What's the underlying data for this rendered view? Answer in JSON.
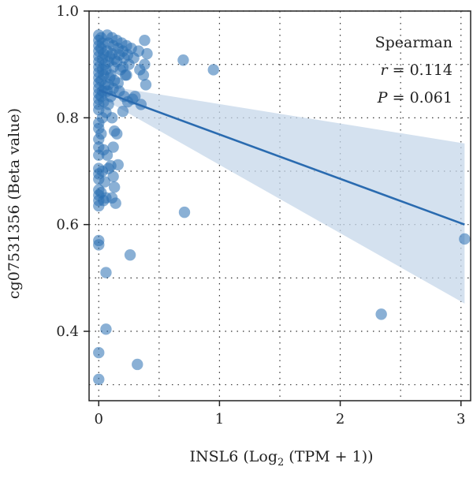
{
  "chart_data": {
    "type": "scatter",
    "xlabel_main": "INSL6 (Log",
    "xlabel_sub": "2",
    "xlabel_tail": " (TPM + 1))",
    "ylabel": "cg07531356 (Beta value)",
    "xlim": [
      -0.08,
      3.08
    ],
    "ylim": [
      0.27,
      1.0
    ],
    "xticks": [
      0,
      1,
      2,
      3
    ],
    "xtick_labels": [
      "0",
      "1",
      "2",
      "3"
    ],
    "yticks": [
      0.4,
      0.6,
      0.8,
      1.0
    ],
    "ytick_labels": [
      "0.4",
      "0.6",
      "0.8",
      "1.0"
    ],
    "grid": true,
    "annotation": {
      "method": "Spearman",
      "r_symbol": "r",
      "r_value": " = 0.114",
      "p_symbol": "P",
      "p_value": " = 0.061"
    },
    "colors": {
      "points": "#2a70b3",
      "line": "#2a6bb0",
      "band": "#c5d7ea"
    },
    "regression": {
      "x": [
        0,
        3.03
      ],
      "y": [
        0.852,
        0.6
      ],
      "ci_upper": [
        0.862,
        0.752
      ],
      "ci_lower": [
        0.84,
        0.452
      ]
    },
    "points": [
      {
        "x": 0.0,
        "y": 0.955
      },
      {
        "x": 0.0,
        "y": 0.945
      },
      {
        "x": 0.0,
        "y": 0.935
      },
      {
        "x": 0.0,
        "y": 0.925
      },
      {
        "x": 0.0,
        "y": 0.915
      },
      {
        "x": 0.0,
        "y": 0.905
      },
      {
        "x": 0.0,
        "y": 0.895
      },
      {
        "x": 0.0,
        "y": 0.885
      },
      {
        "x": 0.0,
        "y": 0.875
      },
      {
        "x": 0.0,
        "y": 0.865
      },
      {
        "x": 0.0,
        "y": 0.855
      },
      {
        "x": 0.0,
        "y": 0.845
      },
      {
        "x": 0.0,
        "y": 0.835
      },
      {
        "x": 0.0,
        "y": 0.825
      },
      {
        "x": 0.0,
        "y": 0.815
      },
      {
        "x": 0.0,
        "y": 0.79
      },
      {
        "x": 0.0,
        "y": 0.78
      },
      {
        "x": 0.0,
        "y": 0.76
      },
      {
        "x": 0.0,
        "y": 0.745
      },
      {
        "x": 0.0,
        "y": 0.73
      },
      {
        "x": 0.0,
        "y": 0.705
      },
      {
        "x": 0.0,
        "y": 0.695
      },
      {
        "x": 0.0,
        "y": 0.685
      },
      {
        "x": 0.0,
        "y": 0.665
      },
      {
        "x": 0.0,
        "y": 0.655
      },
      {
        "x": 0.0,
        "y": 0.645
      },
      {
        "x": 0.0,
        "y": 0.635
      },
      {
        "x": 0.0,
        "y": 0.57
      },
      {
        "x": 0.0,
        "y": 0.562
      },
      {
        "x": 0.0,
        "y": 0.36
      },
      {
        "x": 0.0,
        "y": 0.31
      },
      {
        "x": 0.02,
        "y": 0.95
      },
      {
        "x": 0.03,
        "y": 0.94
      },
      {
        "x": 0.02,
        "y": 0.93
      },
      {
        "x": 0.04,
        "y": 0.92
      },
      {
        "x": 0.03,
        "y": 0.91
      },
      {
        "x": 0.05,
        "y": 0.9
      },
      {
        "x": 0.03,
        "y": 0.89
      },
      {
        "x": 0.04,
        "y": 0.88
      },
      {
        "x": 0.02,
        "y": 0.87
      },
      {
        "x": 0.05,
        "y": 0.86
      },
      {
        "x": 0.03,
        "y": 0.85
      },
      {
        "x": 0.02,
        "y": 0.84
      },
      {
        "x": 0.04,
        "y": 0.83
      },
      {
        "x": 0.03,
        "y": 0.8
      },
      {
        "x": 0.02,
        "y": 0.77
      },
      {
        "x": 0.04,
        "y": 0.74
      },
      {
        "x": 0.03,
        "y": 0.7
      },
      {
        "x": 0.05,
        "y": 0.68
      },
      {
        "x": 0.02,
        "y": 0.66
      },
      {
        "x": 0.04,
        "y": 0.645
      },
      {
        "x": 0.07,
        "y": 0.955
      },
      {
        "x": 0.08,
        "y": 0.94
      },
      {
        "x": 0.07,
        "y": 0.925
      },
      {
        "x": 0.09,
        "y": 0.915
      },
      {
        "x": 0.08,
        "y": 0.905
      },
      {
        "x": 0.06,
        "y": 0.89
      },
      {
        "x": 0.09,
        "y": 0.875
      },
      {
        "x": 0.08,
        "y": 0.862
      },
      {
        "x": 0.07,
        "y": 0.85
      },
      {
        "x": 0.1,
        "y": 0.84
      },
      {
        "x": 0.08,
        "y": 0.825
      },
      {
        "x": 0.06,
        "y": 0.81
      },
      {
        "x": 0.07,
        "y": 0.73
      },
      {
        "x": 0.08,
        "y": 0.705
      },
      {
        "x": 0.06,
        "y": 0.65
      },
      {
        "x": 0.06,
        "y": 0.51
      },
      {
        "x": 0.06,
        "y": 0.404
      },
      {
        "x": 0.11,
        "y": 0.95
      },
      {
        "x": 0.12,
        "y": 0.935
      },
      {
        "x": 0.11,
        "y": 0.92
      },
      {
        "x": 0.13,
        "y": 0.91
      },
      {
        "x": 0.12,
        "y": 0.895
      },
      {
        "x": 0.1,
        "y": 0.88
      },
      {
        "x": 0.13,
        "y": 0.87
      },
      {
        "x": 0.12,
        "y": 0.855
      },
      {
        "x": 0.11,
        "y": 0.8
      },
      {
        "x": 0.13,
        "y": 0.775
      },
      {
        "x": 0.12,
        "y": 0.745
      },
      {
        "x": 0.1,
        "y": 0.71
      },
      {
        "x": 0.12,
        "y": 0.69
      },
      {
        "x": 0.13,
        "y": 0.67
      },
      {
        "x": 0.11,
        "y": 0.65
      },
      {
        "x": 0.14,
        "y": 0.64
      },
      {
        "x": 0.15,
        "y": 0.945
      },
      {
        "x": 0.16,
        "y": 0.93
      },
      {
        "x": 0.17,
        "y": 0.918
      },
      {
        "x": 0.15,
        "y": 0.905
      },
      {
        "x": 0.18,
        "y": 0.89
      },
      {
        "x": 0.16,
        "y": 0.865
      },
      {
        "x": 0.17,
        "y": 0.85
      },
      {
        "x": 0.15,
        "y": 0.77
      },
      {
        "x": 0.16,
        "y": 0.712
      },
      {
        "x": 0.19,
        "y": 0.94
      },
      {
        "x": 0.2,
        "y": 0.925
      },
      {
        "x": 0.21,
        "y": 0.912
      },
      {
        "x": 0.2,
        "y": 0.895
      },
      {
        "x": 0.22,
        "y": 0.88
      },
      {
        "x": 0.21,
        "y": 0.84
      },
      {
        "x": 0.2,
        "y": 0.812
      },
      {
        "x": 0.23,
        "y": 0.935
      },
      {
        "x": 0.24,
        "y": 0.918
      },
      {
        "x": 0.25,
        "y": 0.9
      },
      {
        "x": 0.23,
        "y": 0.88
      },
      {
        "x": 0.24,
        "y": 0.83
      },
      {
        "x": 0.26,
        "y": 0.543
      },
      {
        "x": 0.27,
        "y": 0.93
      },
      {
        "x": 0.29,
        "y": 0.912
      },
      {
        "x": 0.28,
        "y": 0.835
      },
      {
        "x": 0.3,
        "y": 0.84
      },
      {
        "x": 0.32,
        "y": 0.338
      },
      {
        "x": 0.33,
        "y": 0.925
      },
      {
        "x": 0.34,
        "y": 0.89
      },
      {
        "x": 0.35,
        "y": 0.825
      },
      {
        "x": 0.38,
        "y": 0.945
      },
      {
        "x": 0.38,
        "y": 0.9
      },
      {
        "x": 0.4,
        "y": 0.92
      },
      {
        "x": 0.37,
        "y": 0.88
      },
      {
        "x": 0.39,
        "y": 0.862
      },
      {
        "x": 0.7,
        "y": 0.908
      },
      {
        "x": 0.71,
        "y": 0.623
      },
      {
        "x": 0.95,
        "y": 0.89
      },
      {
        "x": 2.34,
        "y": 0.432
      },
      {
        "x": 3.03,
        "y": 0.573
      }
    ]
  }
}
